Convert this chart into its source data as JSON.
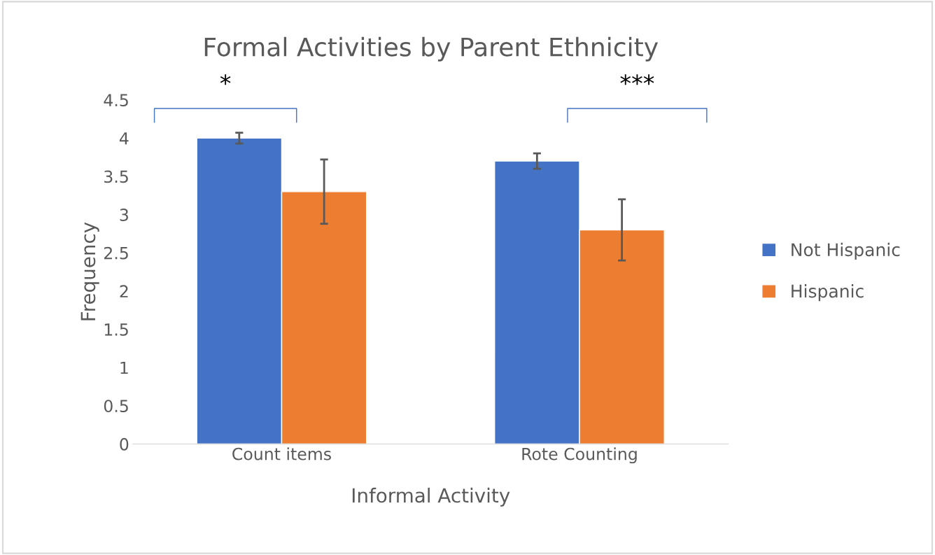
{
  "chart_data": {
    "type": "bar",
    "title": "Formal Activities by Parent Ethnicity",
    "xlabel": "Informal Activity",
    "ylabel": "Frequency",
    "categories": [
      "Count items",
      "Rote Counting"
    ],
    "series": [
      {
        "name": "Not Hispanic",
        "color": "#4472c4",
        "values": [
          4.0,
          3.7
        ],
        "errors": [
          0.07,
          0.1
        ]
      },
      {
        "name": "Hispanic",
        "color": "#ed7d31",
        "values": [
          3.3,
          2.8
        ],
        "errors": [
          0.42,
          0.4
        ]
      }
    ],
    "ylim": [
      0,
      4.5
    ],
    "yticks": [
      0,
      0.5,
      1,
      1.5,
      2,
      2.5,
      3,
      3.5,
      4,
      4.5
    ],
    "annotations": [
      "*",
      "***"
    ],
    "grid": false,
    "legend": "right"
  }
}
